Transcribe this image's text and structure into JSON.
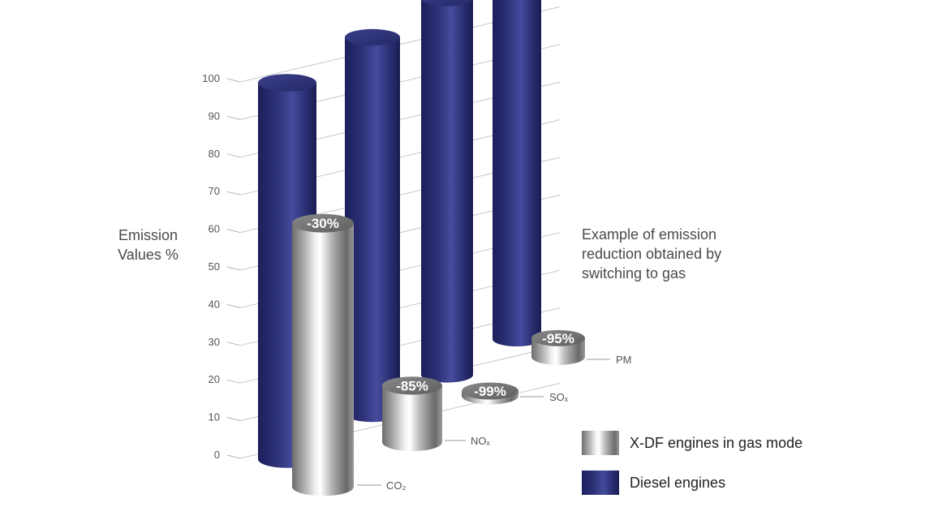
{
  "chart_data": {
    "type": "bar",
    "style": "3d-cylinder",
    "categories": [
      "CO₂",
      "NOₓ",
      "SOₓ",
      "PM"
    ],
    "y_axis": {
      "label": "Emission Values %",
      "min": 0,
      "max": 100,
      "step": 10,
      "ticks": [
        "0",
        "10",
        "20",
        "30",
        "40",
        "50",
        "60",
        "70",
        "80",
        "90",
        "100"
      ]
    },
    "series": [
      {
        "name": "X-DF engines in gas mode",
        "values": [
          70,
          15,
          1,
          5
        ],
        "labels": [
          "-30%",
          "-85%",
          "-99%",
          "-95%"
        ]
      },
      {
        "name": "Diesel engines",
        "values": [
          100,
          100,
          100,
          100
        ]
      }
    ],
    "annotation": "Example of emission reduction obtained by switching to gas",
    "legend_position": "bottom-right",
    "grid": true,
    "colors": {
      "gas": "#a8a8a8",
      "diesel": "#2c3075",
      "label_badge": "#6f6f6f"
    }
  }
}
